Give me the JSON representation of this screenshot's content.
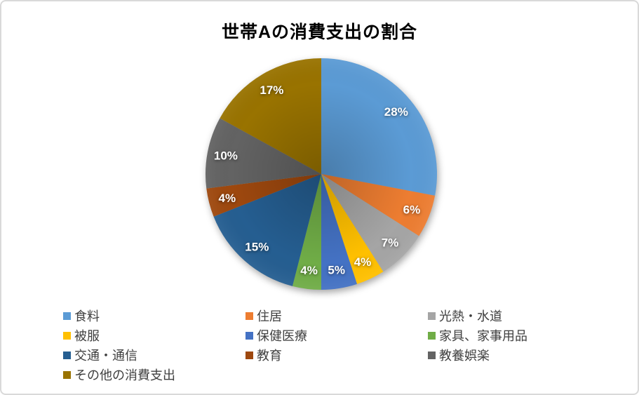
{
  "frame": {
    "background": "#FFFFFF",
    "border_color": "#D9D9D9"
  },
  "chart_data": {
    "type": "pie",
    "title": "世帯Aの消費支出の割合",
    "unit": "%",
    "start_angle_deg": 0,
    "direction": "clockwise",
    "legend_position": "bottom",
    "label_style": {
      "data_label_color": "#FFFFFF",
      "title_color": "#000000",
      "legend_text_color": "#3F3F3F"
    },
    "slices": [
      {
        "label": "食料",
        "value": 28,
        "display": "28%",
        "color": "#5B9BD5"
      },
      {
        "label": "住居",
        "value": 6,
        "display": "6%",
        "color": "#ED7D31"
      },
      {
        "label": "光熱・水道",
        "value": 7,
        "display": "7%",
        "color": "#A5A5A5"
      },
      {
        "label": "被服",
        "value": 4,
        "display": "4%",
        "color": "#FFC000"
      },
      {
        "label": "保健医療",
        "value": 5,
        "display": "5%",
        "color": "#4472C4"
      },
      {
        "label": "家具、家事用品",
        "value": 4,
        "display": "4%",
        "color": "#70AD47"
      },
      {
        "label": "交通・通信",
        "value": 15,
        "display": "15%",
        "color": "#255E91"
      },
      {
        "label": "教育",
        "value": 4,
        "display": "4%",
        "color": "#9E480E"
      },
      {
        "label": "教養娯楽",
        "value": 10,
        "display": "10%",
        "color": "#636363"
      },
      {
        "label": "その他の消費支出",
        "value": 17,
        "display": "17%",
        "color": "#997300"
      }
    ]
  }
}
